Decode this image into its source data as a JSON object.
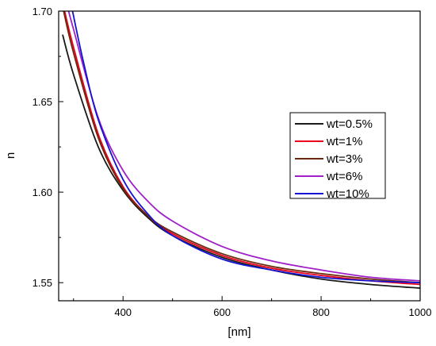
{
  "chart_data": {
    "type": "line",
    "title": "",
    "xlabel": "[nm]",
    "ylabel": "n",
    "xlim": [
      270,
      1000
    ],
    "ylim": [
      1.54,
      1.7
    ],
    "xticks": [
      400,
      600,
      800,
      1000
    ],
    "xtick_labels": [
      "400",
      "600",
      "800",
      "1000"
    ],
    "yticks": [
      1.55,
      1.6,
      1.65,
      1.7
    ],
    "ytick_labels": [
      "1.55",
      "1.60",
      "1.65",
      "1.70"
    ],
    "grid": false,
    "legend_position": "right",
    "series": [
      {
        "name": "wt=0.5%",
        "color": "#1a1a1a",
        "x": [
          278,
          300,
          350,
          400,
          450,
          500,
          600,
          700,
          800,
          900,
          1000
        ],
        "y": [
          1.687,
          1.665,
          1.625,
          1.601,
          1.586,
          1.576,
          1.564,
          1.557,
          1.552,
          1.549,
          1.547
        ]
      },
      {
        "name": "wt=1%",
        "color": "#e8001c",
        "x": [
          282,
          300,
          350,
          400,
          450,
          500,
          600,
          700,
          800,
          900,
          1000
        ],
        "y": [
          1.7,
          1.68,
          1.632,
          1.603,
          1.587,
          1.577,
          1.565,
          1.558,
          1.554,
          1.551,
          1.549
        ]
      },
      {
        "name": "wt=3%",
        "color": "#6b2a10",
        "x": [
          280,
          300,
          350,
          400,
          450,
          500,
          600,
          700,
          800,
          900,
          1000
        ],
        "y": [
          1.7,
          1.677,
          1.63,
          1.602,
          1.587,
          1.578,
          1.566,
          1.559,
          1.555,
          1.552,
          1.55
        ]
      },
      {
        "name": "wt=6%",
        "color": "#a020c8",
        "x": [
          290,
          300,
          350,
          400,
          450,
          500,
          600,
          700,
          800,
          900,
          1000
        ],
        "y": [
          1.7,
          1.69,
          1.641,
          1.612,
          1.595,
          1.584,
          1.57,
          1.562,
          1.557,
          1.553,
          1.551
        ]
      },
      {
        "name": "wt=10%",
        "color": "#1414d2",
        "x": [
          298,
          320,
          350,
          400,
          450,
          500,
          600,
          700,
          800,
          900,
          1000
        ],
        "y": [
          1.7,
          1.672,
          1.64,
          1.607,
          1.588,
          1.576,
          1.563,
          1.557,
          1.553,
          1.551,
          1.55
        ]
      }
    ]
  }
}
